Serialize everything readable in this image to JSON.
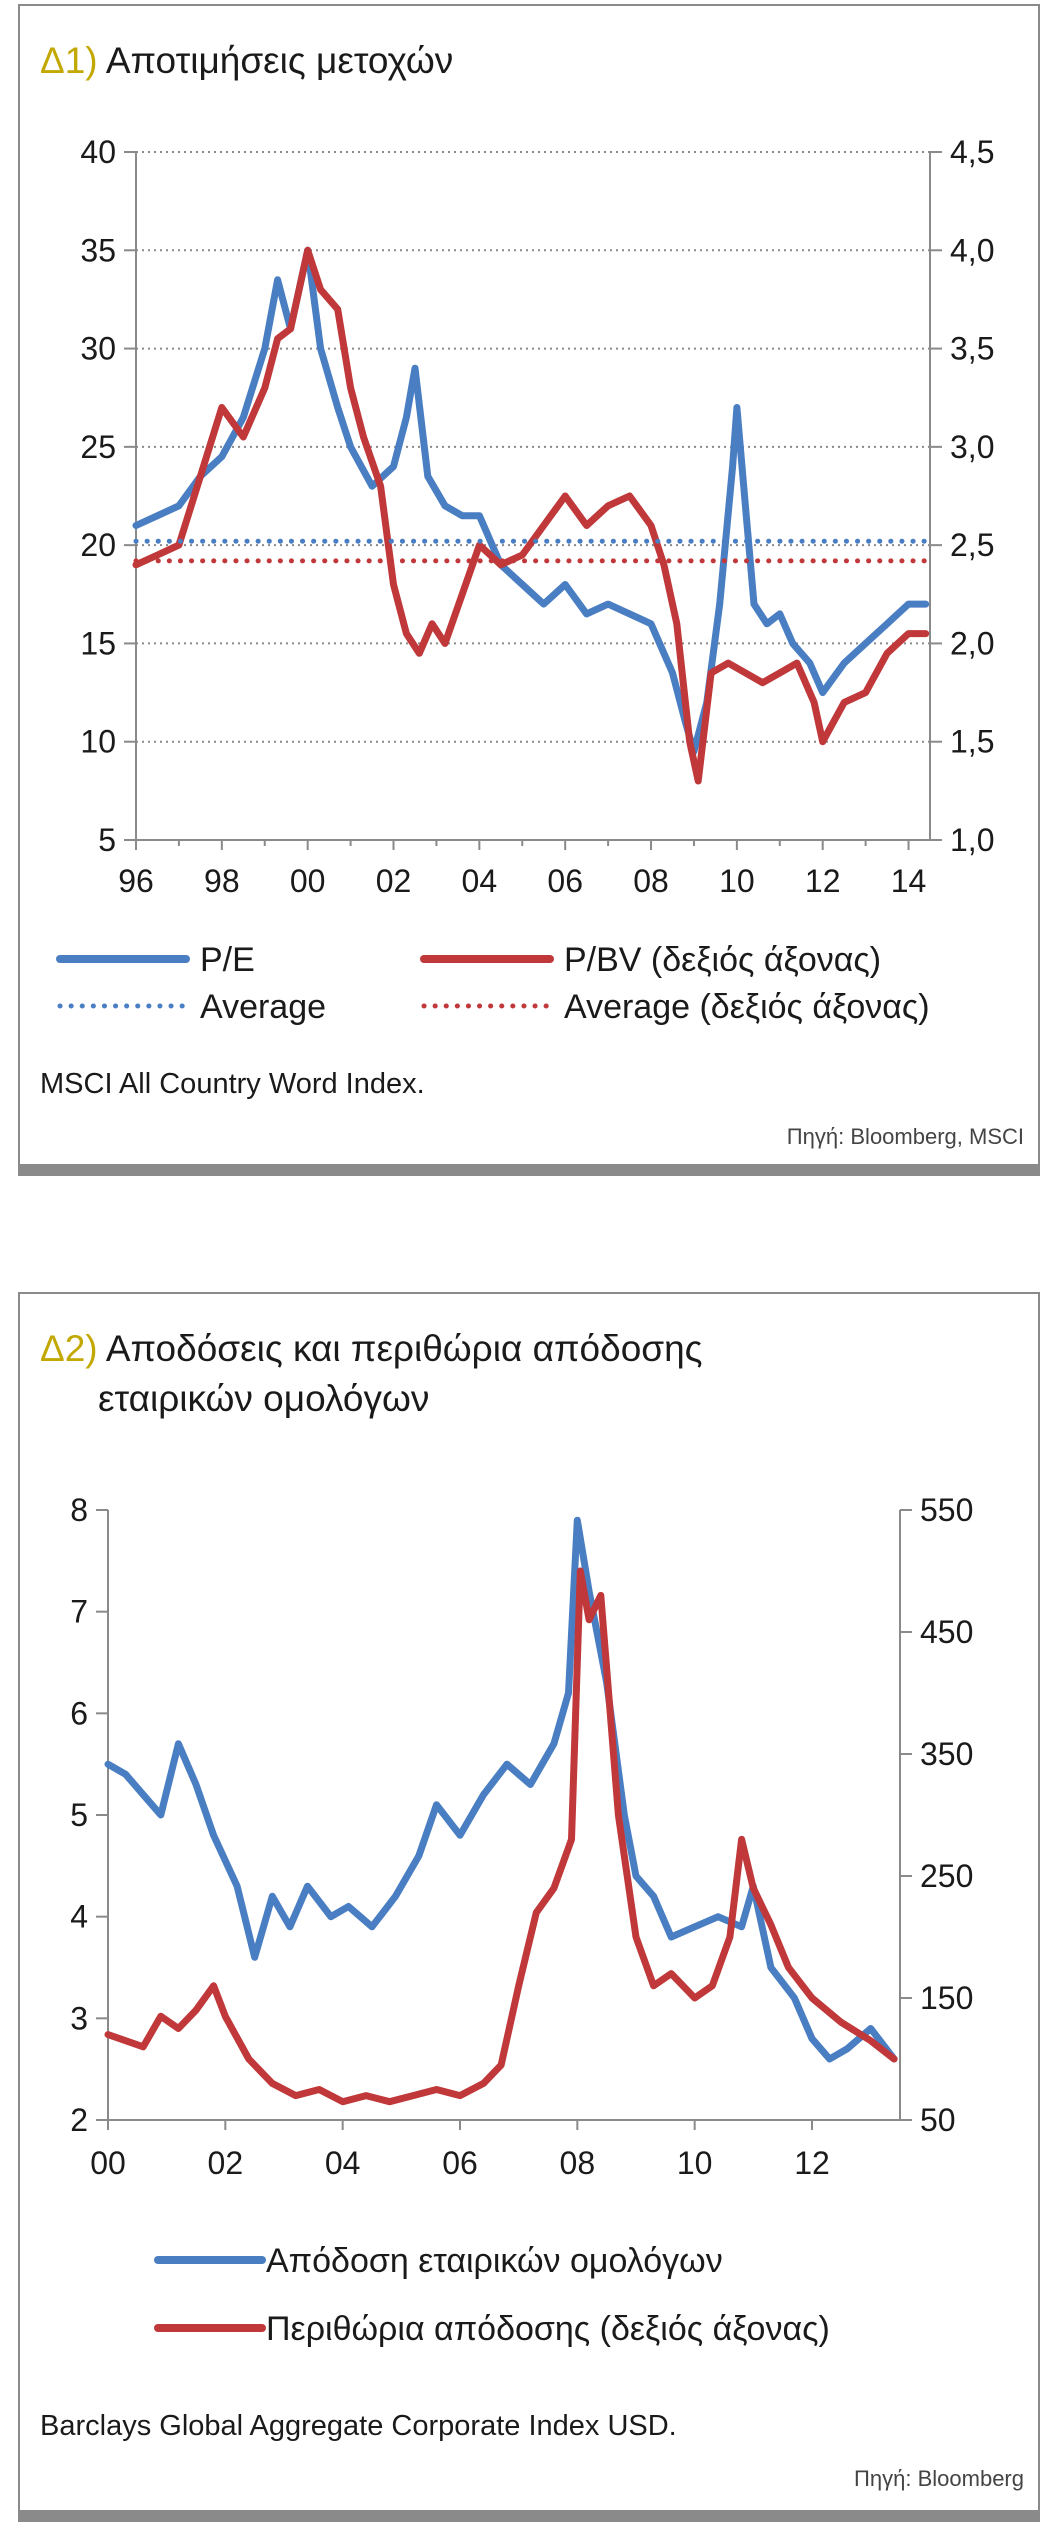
{
  "charts": [
    {
      "id": "d1",
      "title_num": "Δ1)",
      "title": "Αποτιμήσεις μετοχών",
      "note": "MSCI All Country Word Index.",
      "source": "Πηγή: Bloomberg, MSCI"
    },
    {
      "id": "d2",
      "title_num": "Δ2)",
      "title_line1": "Αποδόσεις και περιθώρια απόδοσης",
      "title_line2": "εταιρικών ομολόγων",
      "note": "Barclays Global Aggregate Corporate Index USD.",
      "source": "Πηγή: Bloomberg"
    }
  ],
  "colors": {
    "blue": "#4a7ec2",
    "red": "#c0383a",
    "accent": "#c2a800",
    "grid": "#8a8a8a"
  },
  "chart_data": [
    {
      "type": "line",
      "x_axis": {
        "range": [
          1996,
          2014.5
        ],
        "tick_values": [
          1996,
          1998,
          2000,
          2002,
          2004,
          2006,
          2008,
          2010,
          2012,
          2014
        ],
        "tick_labels": [
          "96",
          "98",
          "00",
          "02",
          "04",
          "06",
          "08",
          "10",
          "12",
          "14"
        ]
      },
      "y_left": {
        "range": [
          5,
          40
        ],
        "ticks": [
          5,
          10,
          15,
          20,
          25,
          30,
          35,
          40
        ],
        "tick_labels": [
          "5",
          "10",
          "15",
          "20",
          "25",
          "30",
          "35",
          "40"
        ]
      },
      "y_right": {
        "range": [
          1.0,
          4.5
        ],
        "ticks": [
          1.0,
          1.5,
          2.0,
          2.5,
          3.0,
          3.5,
          4.0,
          4.5
        ],
        "tick_labels": [
          "1,0",
          "1,5",
          "2,0",
          "2,5",
          "3,0",
          "3,5",
          "4,0",
          "4,5"
        ]
      },
      "grid": "horizontal dotted",
      "legend": [
        {
          "name": "P/E",
          "style": "solid",
          "color": "#4a7ec2",
          "axis": "left"
        },
        {
          "name": "P/BV (δεξιός άξονας)",
          "style": "solid",
          "color": "#c0383a",
          "axis": "right"
        },
        {
          "name": "Average",
          "style": "dotted",
          "color": "#4a7ec2",
          "axis": "left"
        },
        {
          "name": "Average (δεξιός άξονας)",
          "style": "dotted",
          "color": "#c0383a",
          "axis": "right"
        }
      ],
      "series": [
        {
          "name": "P/E",
          "axis": "left",
          "x": [
            1996.0,
            1996.5,
            1997.0,
            1997.5,
            1998.0,
            1998.5,
            1999.0,
            1999.3,
            1999.6,
            2000.0,
            2000.3,
            2000.7,
            2001.0,
            2001.5,
            2002.0,
            2002.3,
            2002.5,
            2002.8,
            2003.2,
            2003.6,
            2004.0,
            2004.5,
            2005.0,
            2005.5,
            2006.0,
            2006.5,
            2007.0,
            2007.5,
            2008.0,
            2008.5,
            2008.8,
            2009.0,
            2009.3,
            2009.6,
            2009.9,
            2010.0,
            2010.2,
            2010.4,
            2010.7,
            2011.0,
            2011.3,
            2011.7,
            2012.0,
            2012.5,
            2013.0,
            2013.5,
            2014.0,
            2014.4
          ],
          "y": [
            21.0,
            21.5,
            22.0,
            23.5,
            24.5,
            26.5,
            30.0,
            33.5,
            31.0,
            35.0,
            30.0,
            27.0,
            25.0,
            23.0,
            24.0,
            26.5,
            29.0,
            23.5,
            22.0,
            21.5,
            21.5,
            19.0,
            18.0,
            17.0,
            18.0,
            16.5,
            17.0,
            16.5,
            16.0,
            13.5,
            11.0,
            9.5,
            12.0,
            17.0,
            24.0,
            27.0,
            22.0,
            17.0,
            16.0,
            16.5,
            15.0,
            14.0,
            12.5,
            14.0,
            15.0,
            16.0,
            17.0,
            17.0
          ]
        },
        {
          "name": "P/BV (δεξιός άξονας)",
          "axis": "right",
          "x": [
            1996.0,
            1996.5,
            1997.0,
            1997.5,
            1998.0,
            1998.5,
            1999.0,
            1999.3,
            1999.6,
            2000.0,
            2000.3,
            2000.7,
            2001.0,
            2001.3,
            2001.7,
            2002.0,
            2002.3,
            2002.6,
            2002.9,
            2003.2,
            2003.6,
            2004.0,
            2004.5,
            2005.0,
            2005.5,
            2006.0,
            2006.5,
            2007.0,
            2007.5,
            2008.0,
            2008.3,
            2008.6,
            2008.9,
            2009.1,
            2009.4,
            2009.8,
            2010.2,
            2010.6,
            2011.0,
            2011.4,
            2011.8,
            2012.0,
            2012.5,
            2013.0,
            2013.5,
            2014.0,
            2014.4
          ],
          "y": [
            2.4,
            2.45,
            2.5,
            2.85,
            3.2,
            3.05,
            3.3,
            3.55,
            3.6,
            4.0,
            3.8,
            3.7,
            3.3,
            3.05,
            2.8,
            2.3,
            2.05,
            1.95,
            2.1,
            2.0,
            2.25,
            2.5,
            2.4,
            2.45,
            2.6,
            2.75,
            2.6,
            2.7,
            2.75,
            2.6,
            2.4,
            2.1,
            1.5,
            1.3,
            1.85,
            1.9,
            1.85,
            1.8,
            1.85,
            1.9,
            1.7,
            1.5,
            1.7,
            1.75,
            1.95,
            2.05,
            2.05
          ]
        },
        {
          "name": "Average",
          "axis": "left",
          "style": "dotted",
          "x": [
            1996.0,
            2014.4
          ],
          "y": [
            20.2,
            20.2
          ]
        },
        {
          "name": "Average (δεξιός άξονας)",
          "axis": "right",
          "style": "dotted",
          "x": [
            1996.0,
            2014.4
          ],
          "y": [
            2.42,
            2.42
          ]
        }
      ]
    },
    {
      "type": "line",
      "x_axis": {
        "range": [
          2000,
          2013.5
        ],
        "tick_values": [
          2000,
          2002,
          2004,
          2006,
          2008,
          2010,
          2012
        ],
        "tick_labels": [
          "00",
          "02",
          "04",
          "06",
          "08",
          "10",
          "12"
        ]
      },
      "y_left": {
        "range": [
          2,
          8
        ],
        "ticks": [
          2,
          3,
          4,
          5,
          6,
          7,
          8
        ],
        "tick_labels": [
          "2",
          "3",
          "4",
          "5",
          "6",
          "7",
          "8"
        ]
      },
      "y_right": {
        "range": [
          50,
          550
        ],
        "ticks": [
          50,
          150,
          250,
          350,
          450,
          550
        ],
        "tick_labels": [
          "50",
          "150",
          "250",
          "350",
          "450",
          "550"
        ]
      },
      "grid": "none",
      "legend": [
        {
          "name": "Απόδοση εταιρικών ομολόγων",
          "style": "solid",
          "color": "#4a7ec2",
          "axis": "left"
        },
        {
          "name": "Περιθώρια απόδοσης (δεξιός άξονας)",
          "style": "solid",
          "color": "#c0383a",
          "axis": "right"
        }
      ],
      "series": [
        {
          "name": "Απόδοση εταιρικών ομολόγων",
          "axis": "left",
          "x": [
            2000.0,
            2000.3,
            2000.6,
            2000.9,
            2001.2,
            2001.5,
            2001.8,
            2002.2,
            2002.5,
            2002.8,
            2003.1,
            2003.4,
            2003.8,
            2004.1,
            2004.5,
            2004.9,
            2005.3,
            2005.6,
            2006.0,
            2006.4,
            2006.8,
            2007.2,
            2007.6,
            2007.85,
            2008.0,
            2008.2,
            2008.5,
            2008.8,
            2009.0,
            2009.3,
            2009.6,
            2010.0,
            2010.4,
            2010.8,
            2011.0,
            2011.3,
            2011.7,
            2012.0,
            2012.3,
            2012.6,
            2013.0,
            2013.4
          ],
          "y": [
            5.5,
            5.4,
            5.2,
            5.0,
            5.7,
            5.3,
            4.8,
            4.3,
            3.6,
            4.2,
            3.9,
            4.3,
            4.0,
            4.1,
            3.9,
            4.2,
            4.6,
            5.1,
            4.8,
            5.2,
            5.5,
            5.3,
            5.7,
            6.2,
            7.9,
            7.2,
            6.3,
            5.0,
            4.4,
            4.2,
            3.8,
            3.9,
            4.0,
            3.9,
            4.3,
            3.5,
            3.2,
            2.8,
            2.6,
            2.7,
            2.9,
            2.6
          ]
        },
        {
          "name": "Περιθώρια απόδοσης (δεξιός άξονας)",
          "axis": "right",
          "x": [
            2000.0,
            2000.3,
            2000.6,
            2000.9,
            2001.2,
            2001.5,
            2001.8,
            2002.0,
            2002.4,
            2002.8,
            2003.2,
            2003.6,
            2004.0,
            2004.4,
            2004.8,
            2005.2,
            2005.6,
            2006.0,
            2006.4,
            2006.7,
            2007.0,
            2007.3,
            2007.6,
            2007.9,
            2008.05,
            2008.2,
            2008.4,
            2008.7,
            2009.0,
            2009.3,
            2009.6,
            2010.0,
            2010.3,
            2010.6,
            2010.8,
            2011.0,
            2011.3,
            2011.6,
            2012.0,
            2012.5,
            2013.0,
            2013.4
          ],
          "y": [
            120,
            115,
            110,
            135,
            125,
            140,
            160,
            135,
            100,
            80,
            70,
            75,
            65,
            70,
            65,
            70,
            75,
            70,
            80,
            95,
            160,
            220,
            240,
            280,
            500,
            460,
            480,
            300,
            200,
            160,
            170,
            150,
            160,
            200,
            280,
            240,
            210,
            175,
            150,
            130,
            115,
            100
          ]
        }
      ]
    }
  ]
}
